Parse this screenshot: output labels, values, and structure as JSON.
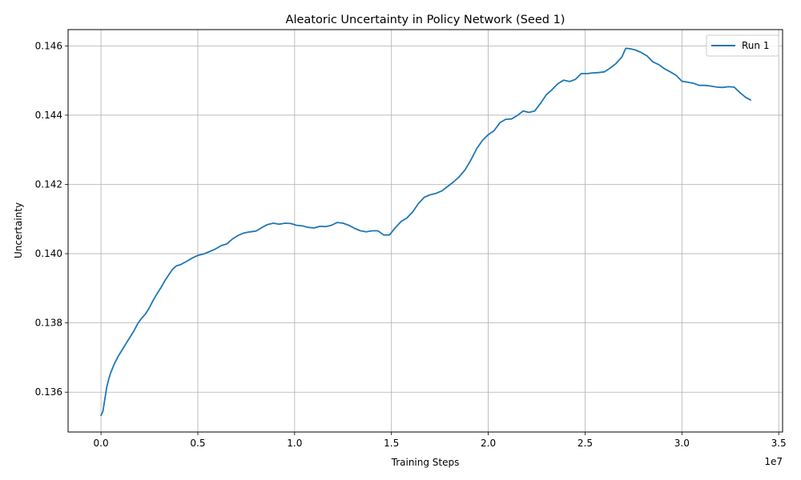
{
  "chart_data": {
    "type": "line",
    "title": "Aleatoric Uncertainty in Policy Network (Seed 1)",
    "xlabel": "Training Steps",
    "ylabel": "Uncertainty",
    "x_offset_label": "1e7",
    "xlim": [
      -1700000,
      35200000
    ],
    "ylim": [
      0.13485,
      0.14647
    ],
    "xticks": [
      0,
      5000000,
      10000000,
      15000000,
      20000000,
      25000000,
      30000000,
      35000000
    ],
    "xtick_labels": [
      "0.0",
      "0.5",
      "1.0",
      "1.5",
      "2.0",
      "2.5",
      "3.0",
      "3.5"
    ],
    "yticks": [
      0.136,
      0.138,
      0.14,
      0.142,
      0.144,
      0.146
    ],
    "ytick_labels": [
      "0.136",
      "0.138",
      "0.140",
      "0.142",
      "0.144",
      "0.146"
    ],
    "grid": true,
    "legend_position": "top-right",
    "series": [
      {
        "name": "Run 1",
        "color": "#1f77b4",
        "x": [
          0,
          100000,
          200000,
          300000,
          400000,
          500000,
          700000,
          900000,
          1100000,
          1300000,
          1500000,
          1700000,
          1900000,
          2100000,
          2300000,
          2500000,
          2700000,
          2900000,
          3100000,
          3300000,
          3500000,
          3700000,
          3900000,
          4100000,
          4400000,
          4700000,
          5000000,
          5300000,
          5600000,
          5900000,
          6200000,
          6500000,
          6800000,
          7100000,
          7400000,
          7700000,
          8000000,
          8300000,
          8600000,
          8900000,
          9200000,
          9500000,
          9800000,
          10100000,
          10400000,
          10700000,
          11000000,
          11300000,
          11600000,
          11900000,
          12200000,
          12500000,
          12800000,
          13100000,
          13400000,
          13700000,
          14000000,
          14300000,
          14600000,
          14900000,
          15200000,
          15500000,
          15800000,
          16100000,
          16400000,
          16700000,
          17000000,
          17300000,
          17600000,
          17900000,
          18200000,
          18500000,
          18800000,
          19100000,
          19400000,
          19700000,
          20000000,
          20300000,
          20600000,
          20900000,
          21200000,
          21500000,
          21800000,
          22100000,
          22400000,
          22700000,
          23000000,
          23300000,
          23600000,
          23900000,
          24200000,
          24500000,
          24800000,
          25100000,
          25400000,
          25700000,
          26000000,
          26300000,
          26600000,
          26900000,
          27100000,
          27300000,
          27600000,
          27900000,
          28200000,
          28500000,
          28800000,
          29100000,
          29400000,
          29700000,
          30000000,
          30300000,
          30600000,
          30900000,
          31200000,
          31500000,
          31800000,
          32100000,
          32400000,
          32700000,
          33000000,
          33300000,
          33550000
        ],
        "values": [
          0.13533,
          0.13545,
          0.1358,
          0.13615,
          0.13638,
          0.13656,
          0.13683,
          0.13705,
          0.13723,
          0.13741,
          0.13759,
          0.13777,
          0.13798,
          0.13814,
          0.13826,
          0.13844,
          0.13866,
          0.13885,
          0.13902,
          0.13922,
          0.13939,
          0.13955,
          0.13965,
          0.13968,
          0.13977,
          0.13987,
          0.13995,
          0.13999,
          0.14006,
          0.14013,
          0.14023,
          0.14028,
          0.14043,
          0.14053,
          0.1406,
          0.14063,
          0.14065,
          0.14075,
          0.14084,
          0.14088,
          0.14085,
          0.14088,
          0.14087,
          0.14082,
          0.1408,
          0.14076,
          0.14074,
          0.14079,
          0.14078,
          0.14082,
          0.1409,
          0.14088,
          0.14082,
          0.14073,
          0.14066,
          0.14063,
          0.14066,
          0.14066,
          0.14054,
          0.14054,
          0.14075,
          0.14093,
          0.14103,
          0.14121,
          0.14145,
          0.14163,
          0.1417,
          0.14174,
          0.14181,
          0.14194,
          0.14207,
          0.14222,
          0.14242,
          0.1427,
          0.14303,
          0.14327,
          0.14344,
          0.14355,
          0.14378,
          0.14388,
          0.14389,
          0.14399,
          0.14412,
          0.14408,
          0.14412,
          0.14434,
          0.14459,
          0.14474,
          0.14491,
          0.14501,
          0.14497,
          0.14503,
          0.1452,
          0.1452,
          0.14522,
          0.14523,
          0.14525,
          0.14536,
          0.14549,
          0.14568,
          0.14593,
          0.14592,
          0.14588,
          0.14581,
          0.14571,
          0.14554,
          0.14546,
          0.14534,
          0.14525,
          0.14515,
          0.14498,
          0.14495,
          0.14492,
          0.14486,
          0.14486,
          0.14484,
          0.14481,
          0.1448,
          0.14482,
          0.14481,
          0.14465,
          0.14451,
          0.14444
        ]
      }
    ]
  }
}
